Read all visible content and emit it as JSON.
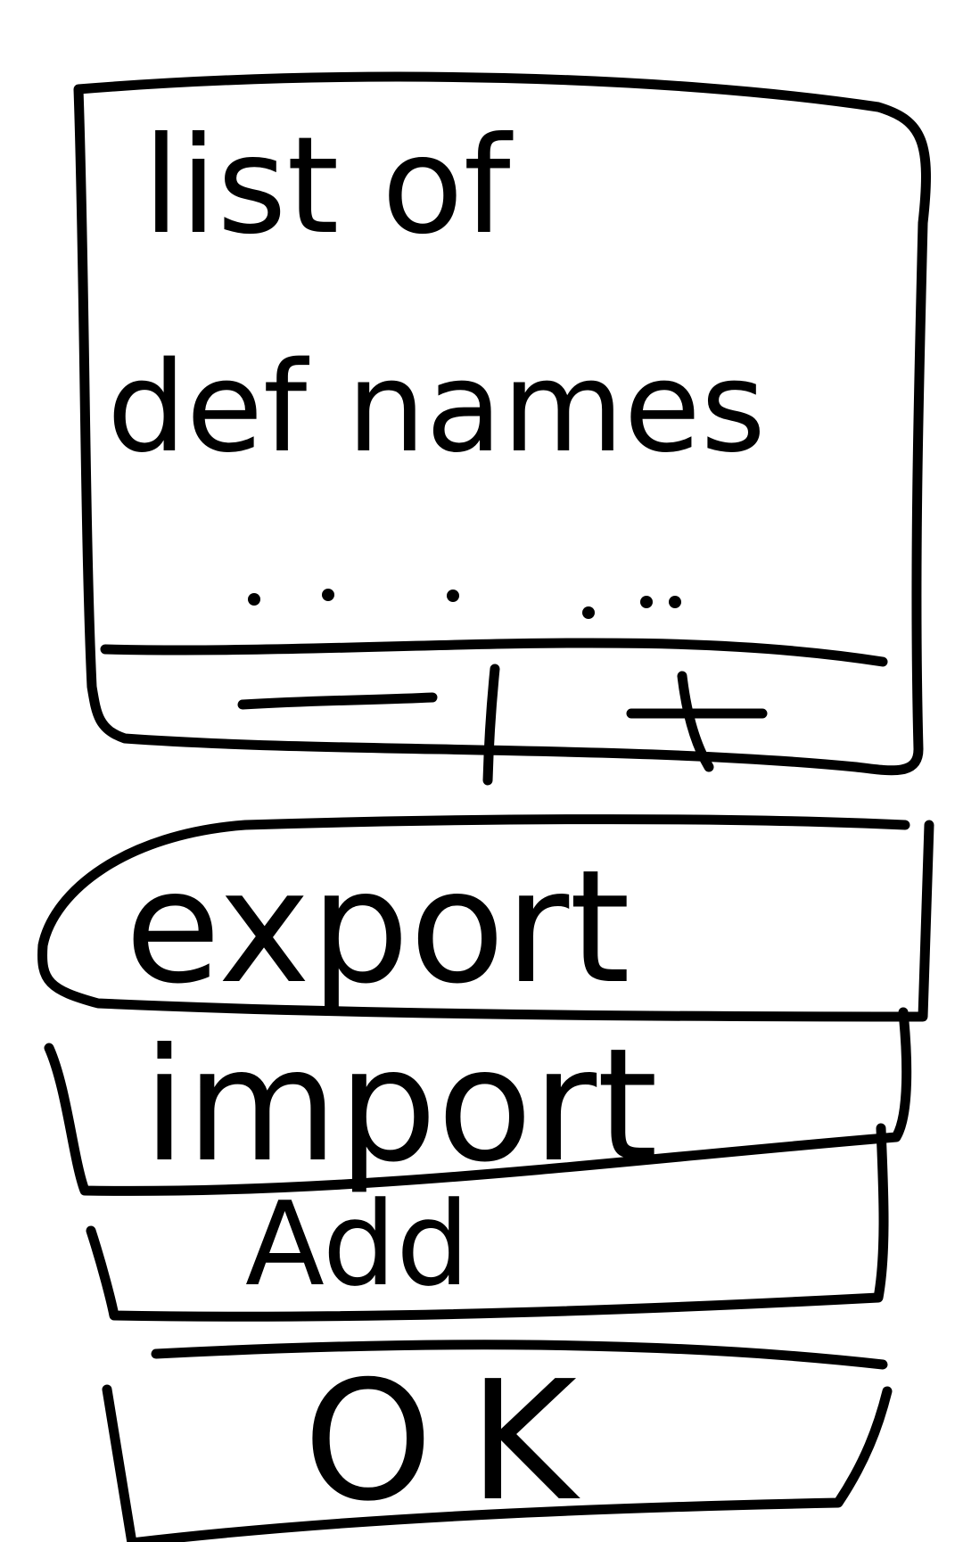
{
  "definition_list": {
    "placeholder_line_1": "list of",
    "placeholder_line_2": "def names",
    "more_indicator": ". . . ..."
  },
  "list_toolbar": {
    "remove_label": "—",
    "add_label": "+"
  },
  "buttons": {
    "export_label": "export",
    "import_label": "import",
    "add_label": "Add",
    "ok_label": "OK"
  }
}
